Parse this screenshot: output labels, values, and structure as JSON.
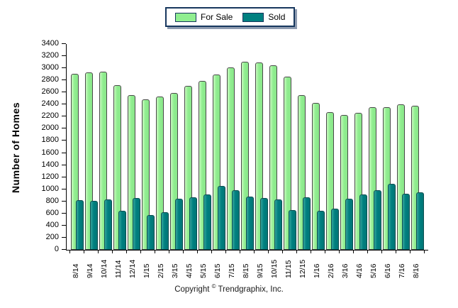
{
  "chart_data": {
    "type": "bar",
    "title": "",
    "xlabel": "",
    "ylabel": "Number of Homes",
    "ylim": [
      0,
      3400
    ],
    "yticks": [
      0,
      200,
      400,
      600,
      800,
      1000,
      1200,
      1400,
      1600,
      1800,
      2000,
      2200,
      2400,
      2600,
      2800,
      3000,
      3200,
      3400
    ],
    "grid": false,
    "legend_position": "top-center",
    "categories": [
      "8/14",
      "9/14",
      "10/14",
      "11/14",
      "12/14",
      "1/15",
      "2/15",
      "3/15",
      "4/15",
      "5/15",
      "6/15",
      "7/15",
      "8/15",
      "9/15",
      "10/15",
      "11/15",
      "12/15",
      "1/16",
      "2/16",
      "3/16",
      "4/16",
      "5/16",
      "6/16",
      "7/16",
      "8/16"
    ],
    "series": [
      {
        "name": "For Sale",
        "color": "#90EE90",
        "values": [
          2910,
          2930,
          2940,
          2720,
          2560,
          2490,
          2530,
          2590,
          2710,
          2790,
          2900,
          3010,
          3110,
          3090,
          3050,
          2860,
          2550,
          2430,
          2280,
          2230,
          2260,
          2360,
          2360,
          2400,
          2380
        ]
      },
      {
        "name": "Sold",
        "color": "#008080",
        "values": [
          820,
          810,
          830,
          650,
          850,
          580,
          620,
          840,
          870,
          910,
          1050,
          990,
          880,
          860,
          830,
          660,
          870,
          650,
          680,
          840,
          920,
          990,
          1090,
          930,
          950
        ]
      }
    ]
  },
  "legend": {
    "for_sale_label": "For Sale",
    "sold_label": "Sold"
  },
  "colors": {
    "for_sale": "#90EE90",
    "sold": "#008080",
    "legend_border": "#17375E",
    "axis": "#000000"
  },
  "footer": {
    "copyright_prefix": "Copyright",
    "copyright_symbol": "©",
    "copyright_company": "Trendgraphix, Inc."
  }
}
